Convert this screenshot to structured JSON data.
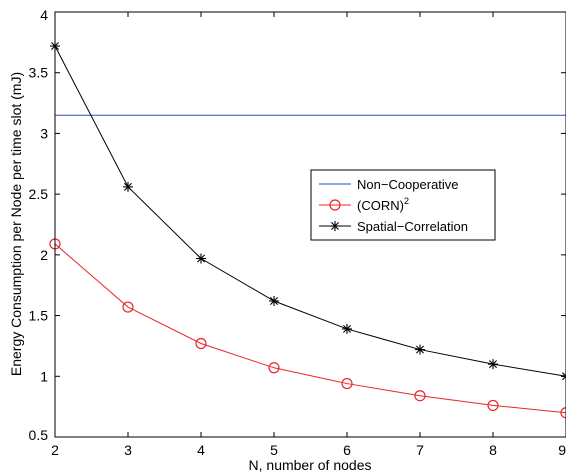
{
  "chart_data": {
    "type": "line",
    "title": "",
    "xlabel": "N, number of nodes",
    "ylabel": "Energy Consumption per Node per time slot (mJ)",
    "xlim": [
      2,
      9
    ],
    "ylim": [
      0.5,
      4
    ],
    "xticks": [
      2,
      3,
      4,
      5,
      6,
      7,
      8,
      9
    ],
    "yticks": [
      0.5,
      1,
      1.5,
      2,
      2.5,
      3,
      3.5,
      4
    ],
    "xtick_labels": [
      "2",
      "3",
      "4",
      "5",
      "6",
      "7",
      "8",
      "9"
    ],
    "ytick_labels": [
      "0.5",
      "1",
      "1.5",
      "2",
      "2.5",
      "3",
      "3.5",
      "4"
    ],
    "grid": false,
    "legend_position": "center-right",
    "x": [
      2,
      3,
      4,
      5,
      6,
      7,
      8,
      9
    ],
    "series": [
      {
        "name": "Non−Cooperative",
        "color": "#2b4ec4",
        "marker": "none",
        "values": [
          3.15,
          3.15,
          3.15,
          3.15,
          3.15,
          3.15,
          3.15,
          3.15
        ]
      },
      {
        "name": "(CORN)",
        "name_superscript": "2",
        "color": "#e8262b",
        "marker": "circle",
        "values": [
          2.09,
          1.57,
          1.27,
          1.07,
          0.94,
          0.84,
          0.76,
          0.7
        ]
      },
      {
        "name": "Spatial−Correlation",
        "color": "#000000",
        "marker": "asterisk",
        "values": [
          3.72,
          2.56,
          1.97,
          1.62,
          1.39,
          1.22,
          1.1,
          1.0
        ]
      }
    ]
  }
}
